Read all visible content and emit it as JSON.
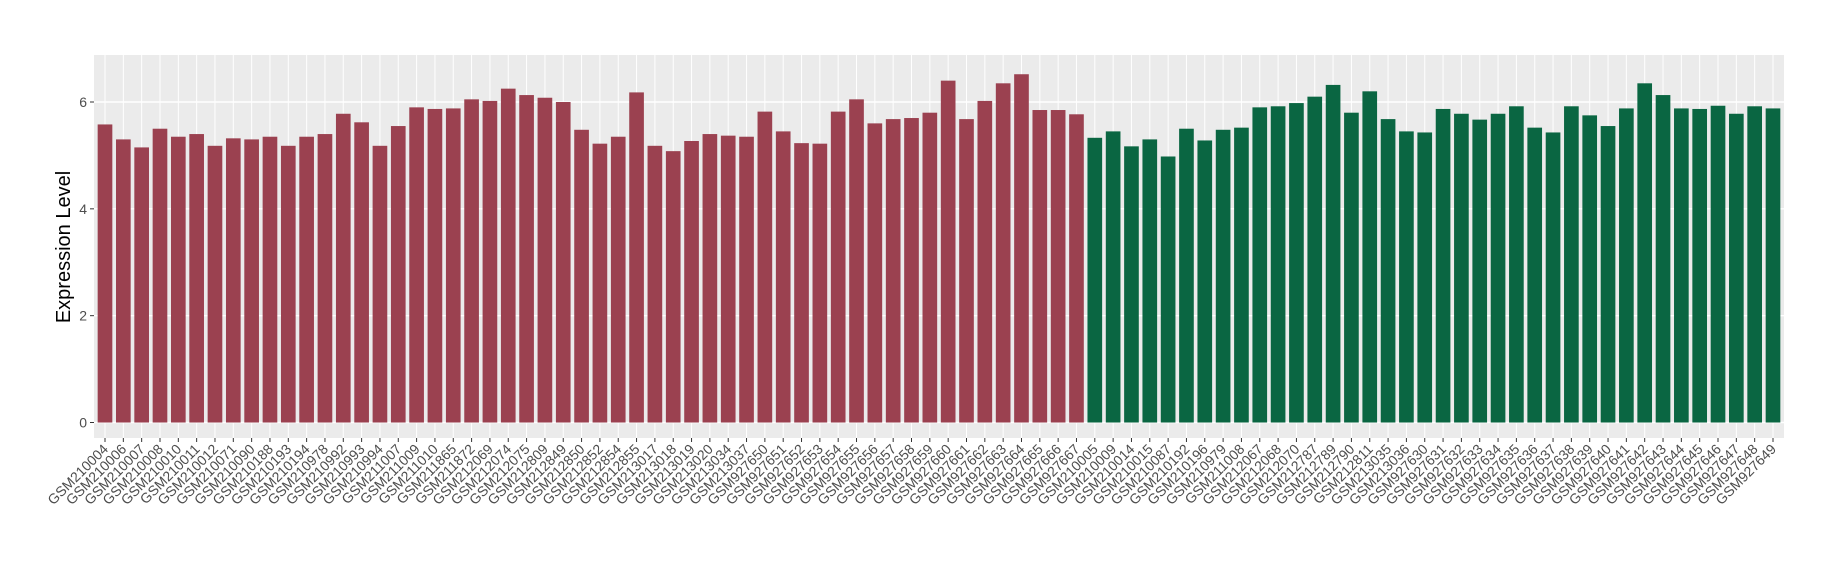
{
  "chart_data": {
    "type": "bar",
    "ylabel": "Expression Level",
    "categories": [
      "GSM210004",
      "GSM210006",
      "GSM210007",
      "GSM210008",
      "GSM210010",
      "GSM210011",
      "GSM210012",
      "GSM210071",
      "GSM210090",
      "GSM210188",
      "GSM210193",
      "GSM210194",
      "GSM210978",
      "GSM210992",
      "GSM210993",
      "GSM210994",
      "GSM211007",
      "GSM211009",
      "GSM211010",
      "GSM211865",
      "GSM211872",
      "GSM212069",
      "GSM212074",
      "GSM212075",
      "GSM212809",
      "GSM212849",
      "GSM212850",
      "GSM212852",
      "GSM212854",
      "GSM212855",
      "GSM213017",
      "GSM213018",
      "GSM213019",
      "GSM213020",
      "GSM213034",
      "GSM213037",
      "GSM927650",
      "GSM927651",
      "GSM927652",
      "GSM927653",
      "GSM927654",
      "GSM927655",
      "GSM927656",
      "GSM927657",
      "GSM927658",
      "GSM927659",
      "GSM927660",
      "GSM927661",
      "GSM927662",
      "GSM927663",
      "GSM927664",
      "GSM927665",
      "GSM927666",
      "GSM927667",
      "GSM210005",
      "GSM210009",
      "GSM210014",
      "GSM210015",
      "GSM210087",
      "GSM210192",
      "GSM210196",
      "GSM210979",
      "GSM211008",
      "GSM212067",
      "GSM212068",
      "GSM212070",
      "GSM212787",
      "GSM212789",
      "GSM212790",
      "GSM212811",
      "GSM213035",
      "GSM213036",
      "GSM927630",
      "GSM927631",
      "GSM927632",
      "GSM927633",
      "GSM927634",
      "GSM927635",
      "GSM927636",
      "GSM927637",
      "GSM927638",
      "GSM927639",
      "GSM927640",
      "GSM927641",
      "GSM927642",
      "GSM927643",
      "GSM927644",
      "GSM927645",
      "GSM927646",
      "GSM927647",
      "GSM927648",
      "GSM927649"
    ],
    "values": [
      5.58,
      5.3,
      5.15,
      5.5,
      5.35,
      5.4,
      5.18,
      5.32,
      5.3,
      5.35,
      5.18,
      5.35,
      5.4,
      5.78,
      5.62,
      5.18,
      5.55,
      5.9,
      5.87,
      5.88,
      6.05,
      6.02,
      6.25,
      6.13,
      6.08,
      6.0,
      5.48,
      5.22,
      5.35,
      6.18,
      5.18,
      5.08,
      5.27,
      5.4,
      5.37,
      5.35,
      5.82,
      5.45,
      5.23,
      5.22,
      5.82,
      6.05,
      5.6,
      5.68,
      5.7,
      5.8,
      6.4,
      5.68,
      6.02,
      6.35,
      6.52,
      5.85,
      5.85,
      5.77,
      5.33,
      5.45,
      5.17,
      5.3,
      4.98,
      5.5,
      5.28,
      5.48,
      5.52,
      5.9,
      5.92,
      5.98,
      6.1,
      6.32,
      5.8,
      6.2,
      5.68,
      5.45,
      5.43,
      5.87,
      5.78,
      5.67,
      5.78,
      5.92,
      5.52,
      5.43,
      5.92,
      5.75,
      5.55,
      5.88,
      6.35,
      6.13,
      5.88,
      5.87,
      5.93,
      5.78,
      5.92,
      5.88
    ],
    "colors": [
      "#9b4150",
      "#9b4150",
      "#9b4150",
      "#9b4150",
      "#9b4150",
      "#9b4150",
      "#9b4150",
      "#9b4150",
      "#9b4150",
      "#9b4150",
      "#9b4150",
      "#9b4150",
      "#9b4150",
      "#9b4150",
      "#9b4150",
      "#9b4150",
      "#9b4150",
      "#9b4150",
      "#9b4150",
      "#9b4150",
      "#9b4150",
      "#9b4150",
      "#9b4150",
      "#9b4150",
      "#9b4150",
      "#9b4150",
      "#9b4150",
      "#9b4150",
      "#9b4150",
      "#9b4150",
      "#9b4150",
      "#9b4150",
      "#9b4150",
      "#9b4150",
      "#9b4150",
      "#9b4150",
      "#9b4150",
      "#9b4150",
      "#9b4150",
      "#9b4150",
      "#9b4150",
      "#9b4150",
      "#9b4150",
      "#9b4150",
      "#9b4150",
      "#9b4150",
      "#9b4150",
      "#9b4150",
      "#9b4150",
      "#9b4150",
      "#9b4150",
      "#9b4150",
      "#9b4150",
      "#9b4150",
      "#0a6642",
      "#0a6642",
      "#0a6642",
      "#0a6642",
      "#0a6642",
      "#0a6642",
      "#0a6642",
      "#0a6642",
      "#0a6642",
      "#0a6642",
      "#0a6642",
      "#0a6642",
      "#0a6642",
      "#0a6642",
      "#0a6642",
      "#0a6642",
      "#0a6642",
      "#0a6642",
      "#0a6642",
      "#0a6642",
      "#0a6642",
      "#0a6642",
      "#0a6642",
      "#0a6642",
      "#0a6642",
      "#0a6642",
      "#0a6642",
      "#0a6642",
      "#0a6642",
      "#0a6642",
      "#0a6642",
      "#0a6642",
      "#0a6642",
      "#0a6642",
      "#0a6642",
      "#0a6642",
      "#0a6642",
      "#0a6642"
    ],
    "ylim": [
      -0.29,
      6.88
    ],
    "yticks": [
      0,
      2,
      4,
      6
    ],
    "grid": true
  }
}
